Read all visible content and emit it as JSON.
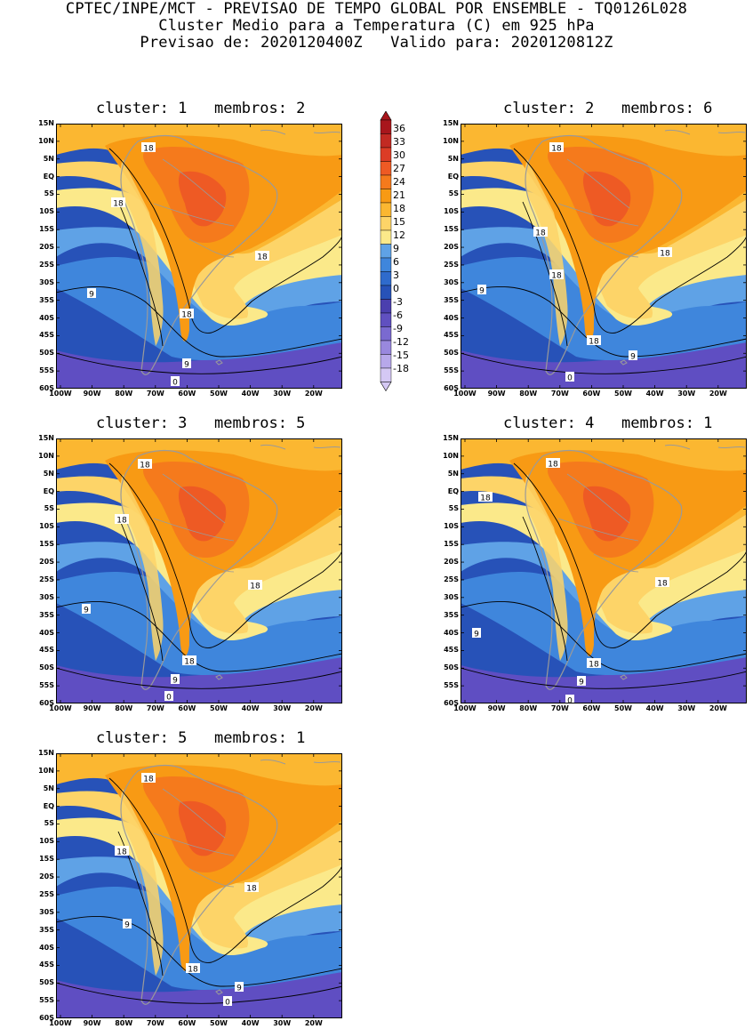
{
  "header": {
    "line1": "CPTEC/INPE/MCT - PREVISAO DE TEMPO GLOBAL POR ENSEMBLE - TQ0126L028",
    "line2": "Cluster Medio para a Temperatura (C) em 925 hPa",
    "line3": "Previsao de: 2020120400Z   Valido para: 2020120812Z"
  },
  "lat_labels": [
    "15N",
    "10N",
    "5N",
    "EQ",
    "5S",
    "10S",
    "15S",
    "20S",
    "25S",
    "30S",
    "35S",
    "40S",
    "45S",
    "50S",
    "55S",
    "60S"
  ],
  "lon_labels": [
    "100W",
    "90W",
    "80W",
    "70W",
    "60W",
    "50W",
    "40W",
    "30W",
    "20W"
  ],
  "colorbar": {
    "levels": [
      "36",
      "33",
      "30",
      "27",
      "24",
      "21",
      "18",
      "15",
      "12",
      "9",
      "6",
      "3",
      "0",
      "-3",
      "-6",
      "-9",
      "-12",
      "-15",
      "-18"
    ],
    "colors": [
      "#a8161c",
      "#c22a23",
      "#dc3c26",
      "#ee5a24",
      "#f57a1c",
      "#f89a14",
      "#fbb731",
      "#fdd468",
      "#fbe98a",
      "#5fa2e6",
      "#3f86dc",
      "#2f6bcc",
      "#2752b8",
      "#4b3fae",
      "#6050c0",
      "#7a6ad0",
      "#9988de",
      "#b7a8ea",
      "#d4c8f4"
    ]
  },
  "colors": {
    "ocean_deep": "#2752b8",
    "ocean_mid": "#3f86dc",
    "ocean_light": "#5fa2e6",
    "ocean_pale": "#8cc0f0",
    "cold_south": "#5f4ec2",
    "pale_yellow": "#fbe98a",
    "yellow": "#fdd468",
    "light_orange": "#fbb731",
    "orange": "#f89a14",
    "dark_orange": "#f57a1c",
    "red_orange": "#ee5a24",
    "coast": "#9a9a9a",
    "contour": "#000000"
  },
  "clusters": [
    {
      "number": "1",
      "members": "2",
      "title": "cluster: 1   membros: 2",
      "labels": [
        "18",
        "18",
        "18",
        "18",
        "9",
        "9",
        "0"
      ]
    },
    {
      "number": "2",
      "members": "6",
      "title": "cluster: 2   membros: 6",
      "labels": [
        "18",
        "18",
        "18",
        "18",
        "18",
        "9",
        "9",
        "0"
      ]
    },
    {
      "number": "3",
      "members": "5",
      "title": "cluster: 3   membros: 5",
      "labels": [
        "18",
        "18",
        "18",
        "18",
        "9",
        "9",
        "0"
      ]
    },
    {
      "number": "4",
      "members": "1",
      "title": "cluster: 4   membros: 1",
      "labels": [
        "18",
        "18",
        "18",
        "18",
        "9",
        "9",
        "0"
      ]
    },
    {
      "number": "5",
      "members": "1",
      "title": "cluster: 5   membros: 1",
      "labels": [
        "18",
        "18",
        "18",
        "18",
        "9",
        "9",
        "0"
      ]
    }
  ]
}
